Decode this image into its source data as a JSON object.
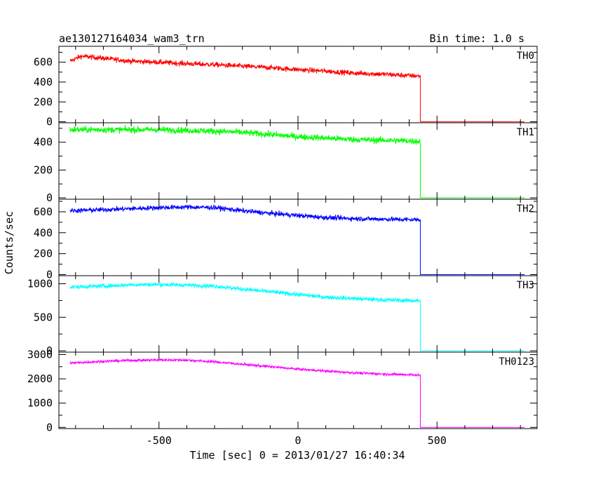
{
  "header": {
    "title": "ae130127164034_wam3_trn",
    "bin_time": "Bin time: 1.0 s"
  },
  "xaxis": {
    "label": "Time [sec] 0 = 2013/01/27 16:40:34",
    "ticks": [
      "-500",
      "0",
      "500"
    ]
  },
  "yaxis": {
    "label": "Counts/sec"
  },
  "chart_data": {
    "type": "line",
    "title": "ae130127164034_wam3_trn",
    "subtitle": "Bin time: 1.0 s",
    "xlabel": "Time [sec] 0 = 2013/01/27 16:40:34",
    "ylabel": "Counts/sec",
    "xlim": [
      -860,
      860
    ],
    "x_ticks": [
      -500,
      0,
      500
    ],
    "drop_time": 440,
    "x_start": -820,
    "x_end": 815,
    "grid": false,
    "legend": "none",
    "series": [
      {
        "name": "TH0",
        "color": "#ff0000",
        "ylim": [
          -10,
          760
        ],
        "y_ticks": [
          0,
          200,
          400,
          600
        ],
        "noise": 45,
        "x": [
          -820,
          -780,
          -700,
          -600,
          -500,
          -400,
          -300,
          -200,
          -100,
          0,
          100,
          200,
          300,
          400,
          440
        ],
        "y": [
          610,
          660,
          640,
          610,
          600,
          585,
          575,
          560,
          545,
          525,
          510,
          490,
          480,
          465,
          460
        ],
        "after_drop": 0
      },
      {
        "name": "TH1",
        "color": "#00ff00",
        "ylim": [
          -10,
          540
        ],
        "y_ticks": [
          0,
          200,
          400
        ],
        "noise": 40,
        "x": [
          -820,
          -700,
          -600,
          -500,
          -400,
          -300,
          -200,
          -100,
          0,
          100,
          200,
          300,
          400,
          440
        ],
        "y": [
          490,
          490,
          490,
          490,
          485,
          480,
          470,
          455,
          440,
          430,
          420,
          415,
          410,
          405
        ],
        "after_drop": 0
      },
      {
        "name": "TH2",
        "color": "#0000ff",
        "ylim": [
          -10,
          720
        ],
        "y_ticks": [
          0,
          200,
          400,
          600
        ],
        "noise": 40,
        "x": [
          -820,
          -700,
          -600,
          -500,
          -400,
          -300,
          -200,
          -100,
          0,
          100,
          200,
          300,
          400,
          440
        ],
        "y": [
          610,
          620,
          630,
          640,
          645,
          640,
          610,
          585,
          565,
          545,
          535,
          530,
          525,
          525
        ],
        "after_drop": 0
      },
      {
        "name": "TH3",
        "color": "#00ffff",
        "ylim": [
          -20,
          1120
        ],
        "y_ticks": [
          0,
          500,
          1000
        ],
        "noise": 55,
        "x": [
          -820,
          -700,
          -600,
          -500,
          -400,
          -300,
          -200,
          -100,
          0,
          100,
          200,
          300,
          400,
          440
        ],
        "y": [
          950,
          965,
          985,
          990,
          980,
          965,
          920,
          880,
          840,
          800,
          780,
          760,
          750,
          745
        ],
        "after_drop": 0
      },
      {
        "name": "TH0123",
        "color": "#ff00ff",
        "ylim": [
          -50,
          3100
        ],
        "y_ticks": [
          0,
          1000,
          2000,
          3000
        ],
        "noise": 90,
        "x": [
          -820,
          -700,
          -600,
          -500,
          -400,
          -300,
          -200,
          -100,
          0,
          100,
          200,
          300,
          400,
          440
        ],
        "y": [
          2650,
          2720,
          2760,
          2780,
          2770,
          2700,
          2600,
          2500,
          2400,
          2320,
          2250,
          2200,
          2170,
          2150
        ],
        "after_drop": 0
      }
    ]
  }
}
